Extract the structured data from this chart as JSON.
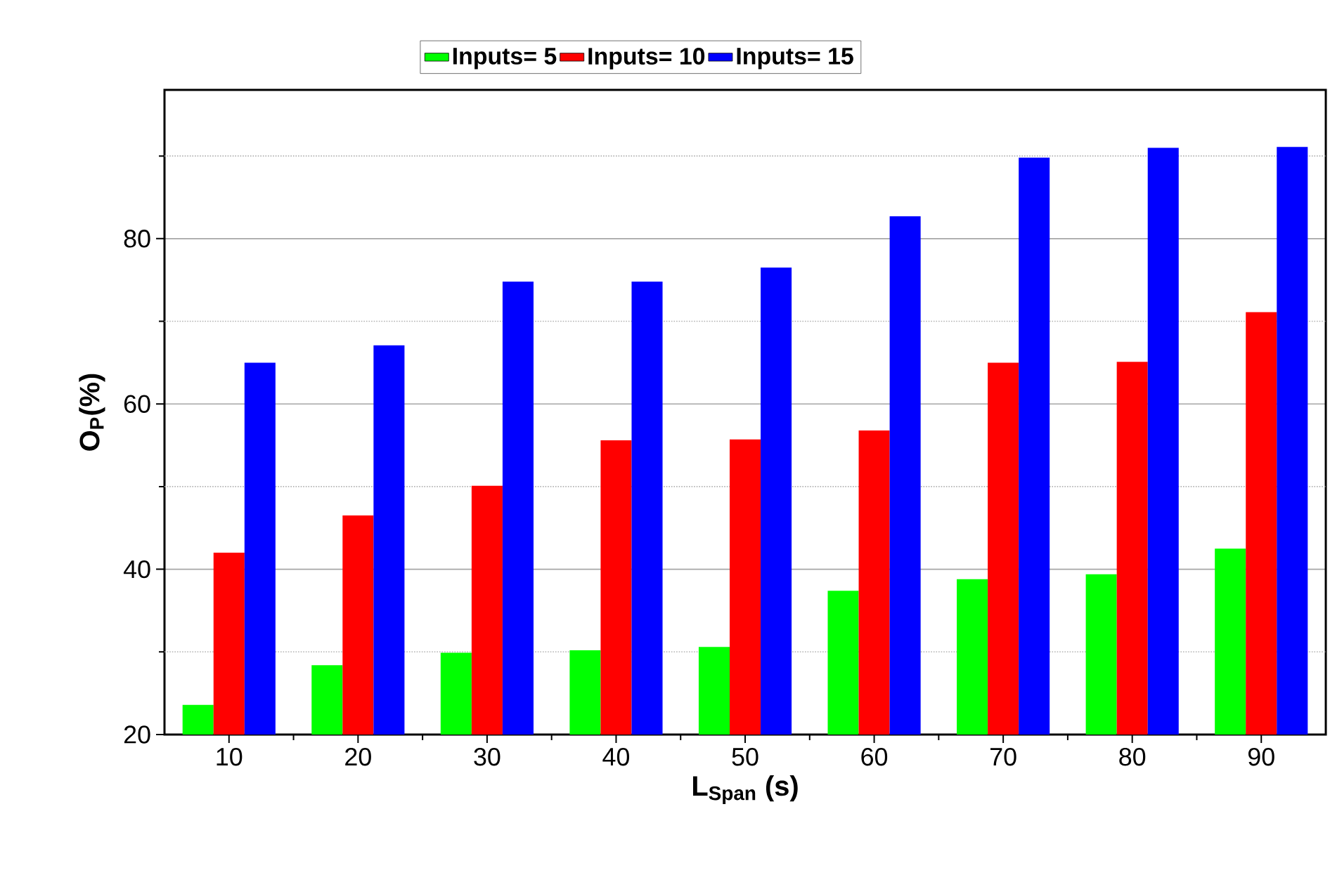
{
  "chart_data": {
    "type": "bar",
    "xlabel": "L$_{Span}$ (s)",
    "ylabel": "O$_{P}$(%)",
    "categories": [
      "10",
      "20",
      "30",
      "40",
      "50",
      "60",
      "70",
      "80",
      "90"
    ],
    "series": [
      {
        "name": "Inputs= 5",
        "color": "#00ff00",
        "values": [
          23.6,
          28.4,
          29.9,
          30.2,
          30.6,
          37.4,
          38.8,
          39.4,
          42.5
        ]
      },
      {
        "name": "Inputs= 10",
        "color": "#ff0000",
        "values": [
          42.0,
          46.5,
          50.1,
          55.6,
          55.7,
          56.8,
          65.0,
          65.1,
          71.1
        ]
      },
      {
        "name": "Inputs= 15",
        "color": "#0000ff",
        "values": [
          65.0,
          67.1,
          74.8,
          74.8,
          76.5,
          82.7,
          89.8,
          91.0,
          91.1
        ]
      }
    ],
    "ylim": [
      20,
      98
    ],
    "yticks": [
      20,
      {
        "value": 30,
        "label": null
      },
      40,
      {
        "value": 50,
        "label": null
      },
      60,
      {
        "value": 70,
        "label": null
      },
      80,
      {
        "value": 90,
        "label": null
      }
    ],
    "grid": "y",
    "legend": "top"
  }
}
